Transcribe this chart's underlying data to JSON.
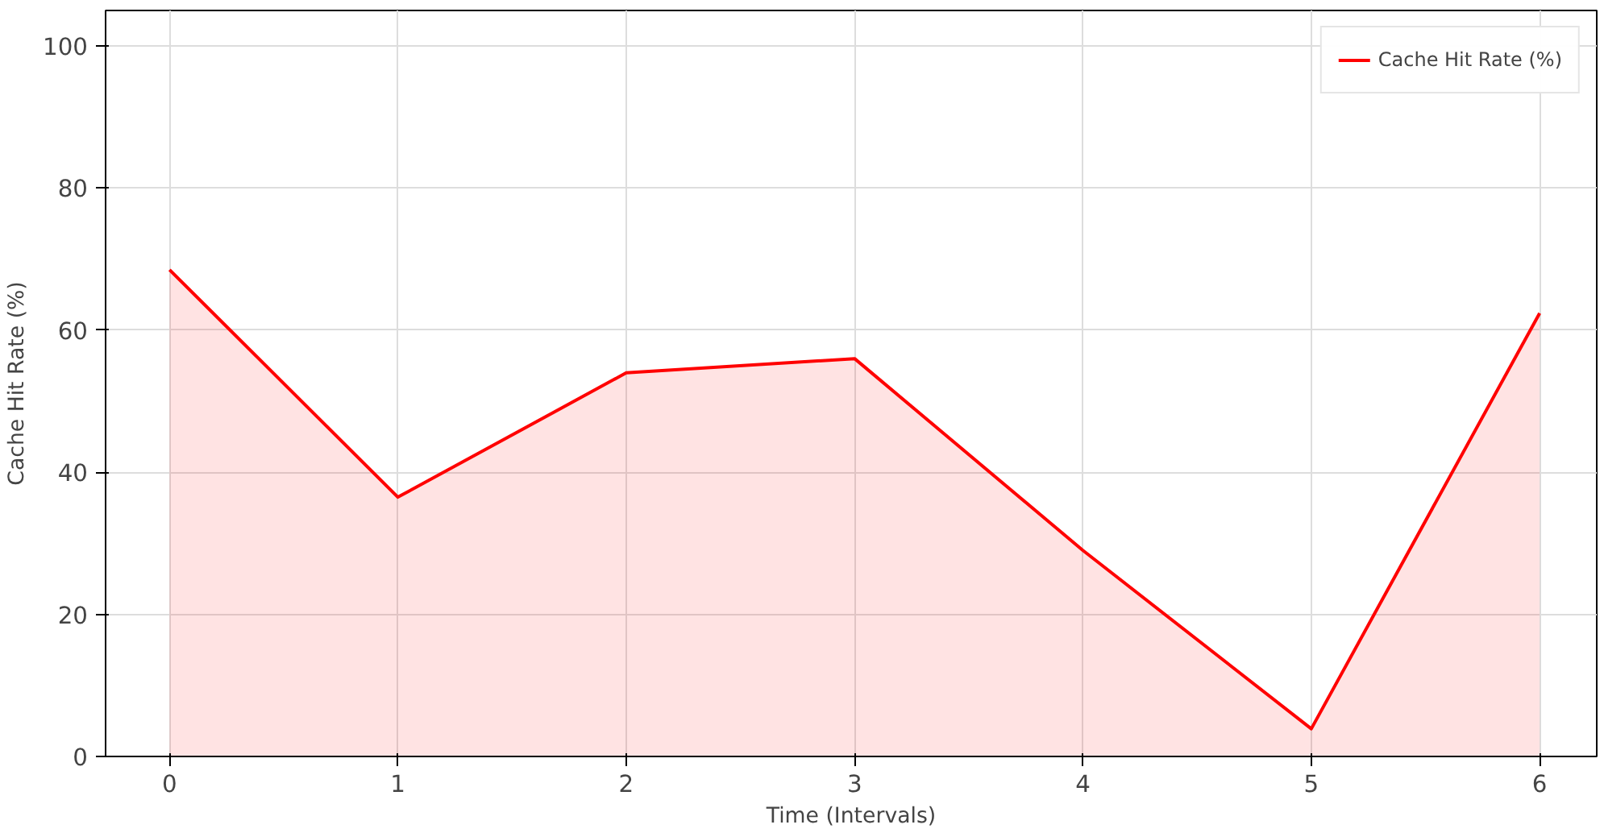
{
  "chart_data": {
    "type": "area",
    "xlabel": "Time (Intervals)",
    "ylabel": "Cache Hit Rate (%)",
    "x": [
      0,
      1,
      2,
      3,
      4,
      5,
      6
    ],
    "series": [
      {
        "name": "Cache Hit Rate (%)",
        "color": "#ff0000",
        "values": [
          68.5,
          36.5,
          54.0,
          56.0,
          29.0,
          3.9,
          62.4
        ]
      }
    ],
    "xlim": [
      -0.28,
      6.25
    ],
    "ylim": [
      0,
      105
    ],
    "xticks": [
      0,
      1,
      2,
      3,
      4,
      5,
      6
    ],
    "yticks": [
      0,
      20,
      40,
      60,
      80,
      100
    ],
    "grid": true,
    "legend": "top right"
  }
}
